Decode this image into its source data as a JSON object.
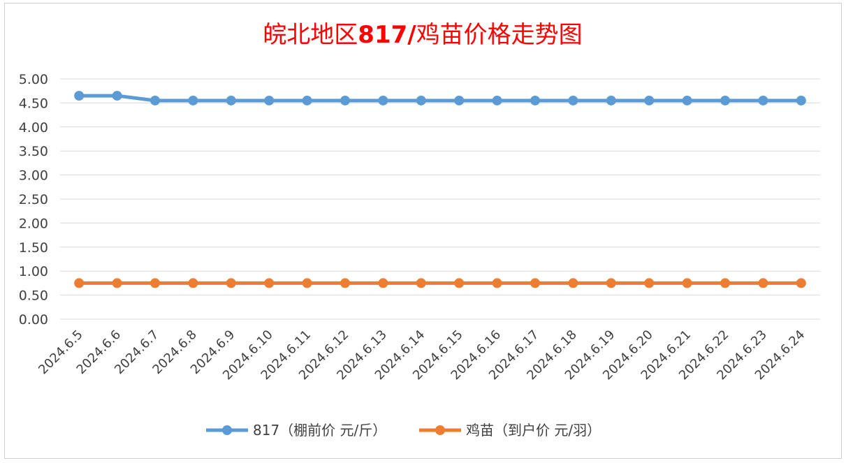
{
  "chart_data": {
    "type": "line",
    "title_parts": [
      "皖北地区",
      "817/",
      "鸡苗价格走势图"
    ],
    "categories": [
      "2024.6.5",
      "2024.6.6",
      "2024.6.7",
      "2024.6.8",
      "2024.6.9",
      "2024.6.10",
      "2024.6.11",
      "2024.6.12",
      "2024.6.13",
      "2024.6.14",
      "2024.6.15",
      "2024.6.16",
      "2024.6.17",
      "2024.6.18",
      "2024.6.19",
      "2024.6.20",
      "2024.6.21",
      "2024.6.22",
      "2024.6.23",
      "2024.6.24"
    ],
    "y_ticks": [
      "0.00",
      "0.50",
      "1.00",
      "1.50",
      "2.00",
      "2.50",
      "3.00",
      "3.50",
      "4.00",
      "4.50",
      "5.00"
    ],
    "ylim": [
      0,
      5
    ],
    "grid": true,
    "legend_position": "bottom",
    "series": [
      {
        "name": "817（棚前价 元/斤）",
        "color": "#5b9bd5",
        "values": [
          4.65,
          4.65,
          4.55,
          4.55,
          4.55,
          4.55,
          4.55,
          4.55,
          4.55,
          4.55,
          4.55,
          4.55,
          4.55,
          4.55,
          4.55,
          4.55,
          4.55,
          4.55,
          4.55,
          4.55
        ]
      },
      {
        "name": "鸡苗（到户价 元/羽）",
        "color": "#ed7d31",
        "values": [
          0.75,
          0.75,
          0.75,
          0.75,
          0.75,
          0.75,
          0.75,
          0.75,
          0.75,
          0.75,
          0.75,
          0.75,
          0.75,
          0.75,
          0.75,
          0.75,
          0.75,
          0.75,
          0.75,
          0.75
        ]
      }
    ]
  }
}
